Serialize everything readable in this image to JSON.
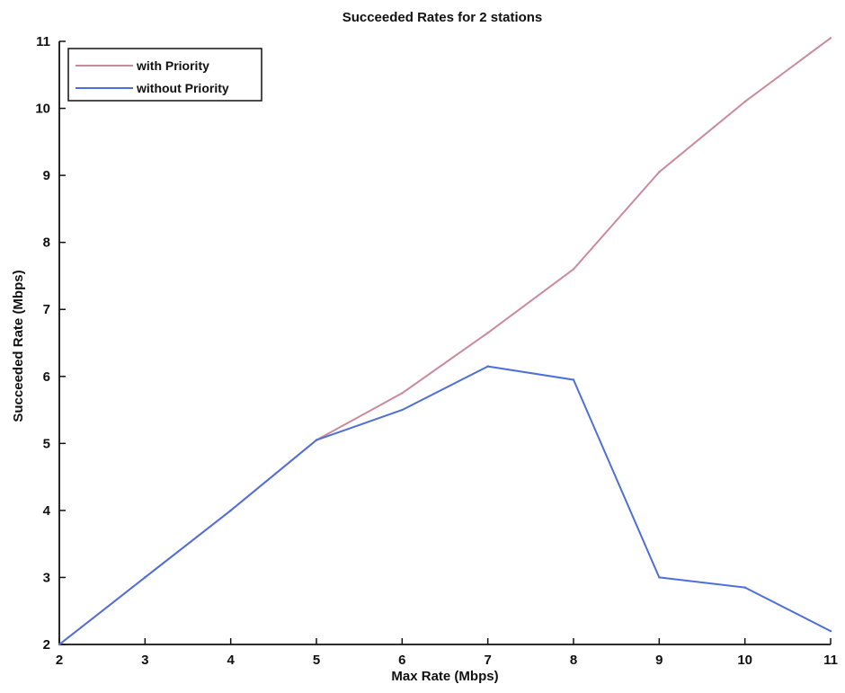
{
  "chart_data": {
    "type": "line",
    "title": "Succeeded Rates for 2 stations",
    "xlabel": "Max Rate (Mbps)",
    "ylabel": "Succeeded Rate (Mbps)",
    "xlim": [
      2,
      11
    ],
    "ylim": [
      2,
      11
    ],
    "xticks": [
      2,
      3,
      4,
      5,
      6,
      7,
      8,
      9,
      10,
      11
    ],
    "yticks": [
      2,
      3,
      4,
      5,
      6,
      7,
      8,
      9,
      10,
      11
    ],
    "grid": false,
    "legend_position": "top-left",
    "series": [
      {
        "name": "with Priority",
        "color": "#c98a9c",
        "x": [
          2,
          3,
          4,
          5,
          6,
          7,
          8,
          9,
          10,
          11
        ],
        "y": [
          2.0,
          3.0,
          4.0,
          5.05,
          5.75,
          6.65,
          7.6,
          9.05,
          10.1,
          11.05
        ]
      },
      {
        "name": "without Priority",
        "color": "#4f6fd8",
        "x": [
          2,
          3,
          4,
          5,
          6,
          7,
          8,
          9,
          10,
          11
        ],
        "y": [
          2.0,
          3.0,
          4.0,
          5.05,
          5.5,
          6.15,
          5.95,
          3.0,
          2.85,
          2.2
        ]
      }
    ]
  }
}
